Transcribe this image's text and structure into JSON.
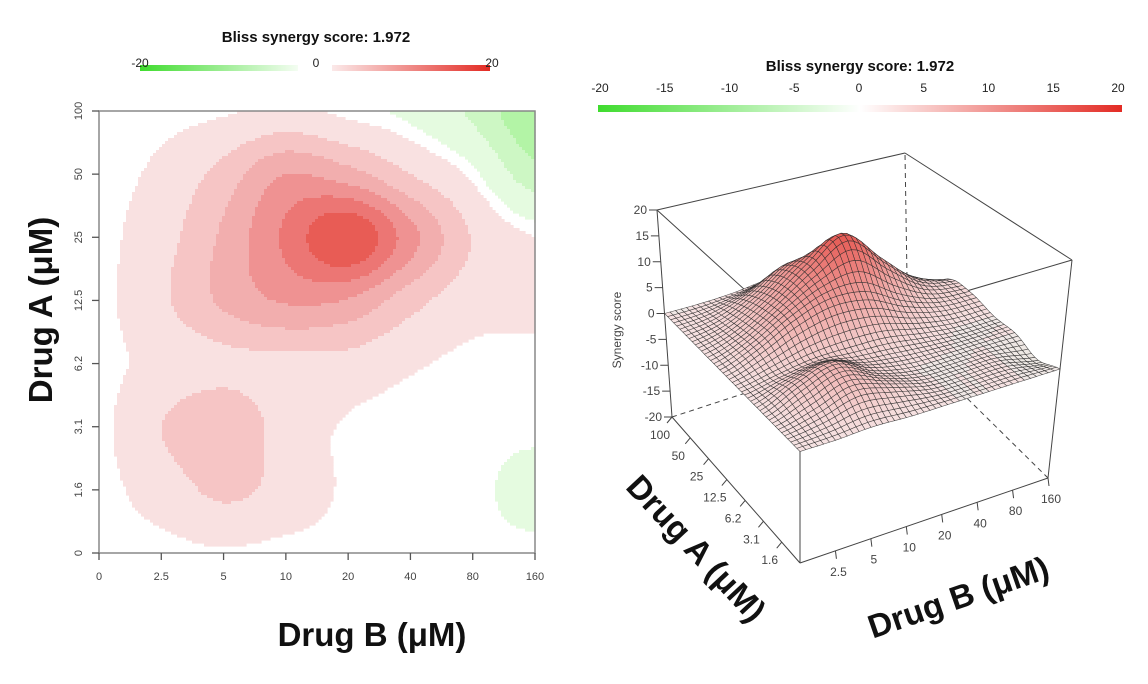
{
  "chart_data": [
    {
      "type": "heatmap",
      "subtype": "filled-contour",
      "title": "Bliss synergy score: 1.972",
      "xlabel": "Drug B (μM)",
      "ylabel": "Drug A (μM)",
      "x_ticks": [
        "0",
        "2.5",
        "5",
        "10",
        "20",
        "40",
        "80",
        "160"
      ],
      "y_ticks": [
        "0",
        "1.6",
        "3.1",
        "6.2",
        "12.5",
        "25",
        "50",
        "100"
      ],
      "colorbar": {
        "min": -20,
        "max": 20,
        "tick_labels": [
          "-20",
          "0",
          "20"
        ]
      },
      "values_rows_drugA_cols_drugB": [
        [
          0,
          0,
          0.3,
          0,
          0,
          0,
          0,
          0
        ],
        [
          0,
          1.5,
          3.6,
          2,
          0.2,
          0,
          0,
          -1.5
        ],
        [
          0,
          3,
          5,
          1.8,
          0.3,
          0,
          0,
          0
        ],
        [
          0,
          1.2,
          2.2,
          2.2,
          2,
          0.8,
          0,
          0
        ],
        [
          0,
          2.5,
          6,
          8.3,
          7.8,
          4,
          1.5,
          1
        ],
        [
          0,
          2,
          6,
          11,
          15.5,
          9,
          2.8,
          0.5
        ],
        [
          0,
          1,
          4,
          8,
          6.5,
          3,
          0,
          -4.5
        ],
        [
          0,
          0,
          0.3,
          1,
          0,
          -1,
          -3.5,
          -8
        ]
      ]
    },
    {
      "type": "surface",
      "title": "Bliss synergy score: 1.972",
      "xlabel": "Drug B (μM)",
      "ylabel": "Drug A (μM)",
      "zlabel": "Synergy score",
      "zlim": [
        -20,
        20
      ],
      "z_ticks": [
        "20",
        "15",
        "10",
        "5",
        "0",
        "-5",
        "-10",
        "-15",
        "-20"
      ],
      "x_ticks": [
        "2.5",
        "5",
        "10",
        "20",
        "40",
        "80",
        "160"
      ],
      "y_ticks": [
        "100",
        "50",
        "25",
        "12.5",
        "6.2",
        "3.1",
        "1.6"
      ],
      "colorbar": {
        "min": -20,
        "max": 20,
        "tick_labels": [
          "-20",
          "-15",
          "-10",
          "-5",
          "0",
          "5",
          "10",
          "15",
          "20"
        ]
      },
      "values_rows_drugA_cols_drugB": [
        [
          0,
          0,
          0.3,
          0,
          0,
          0,
          0,
          0
        ],
        [
          0,
          1.5,
          3.6,
          2,
          0.2,
          0,
          0,
          -1.5
        ],
        [
          0,
          3,
          5,
          1.8,
          0.3,
          0,
          0,
          0
        ],
        [
          0,
          1.2,
          2.2,
          2.2,
          2,
          0.8,
          0,
          0
        ],
        [
          0,
          2.5,
          6,
          8.3,
          7.8,
          4,
          1.5,
          1
        ],
        [
          0,
          2,
          6,
          11,
          15.5,
          9,
          2.8,
          0.5
        ],
        [
          0,
          1,
          4,
          8,
          6.5,
          3,
          0,
          -4.5
        ],
        [
          0,
          0,
          0.3,
          1,
          0,
          -1,
          -3.5,
          -8
        ]
      ]
    }
  ],
  "colors": {
    "antagonism": "#3fdc2e",
    "neutral": "#ffffff",
    "synergy": "#e32b24",
    "contour_synergy_levels": [
      "#f9e1e1",
      "#f6c5c5",
      "#f2aeae",
      "#ef9292",
      "#ec7674",
      "#e85c55"
    ],
    "contour_antagonism_levels": [
      "#e5fbe0",
      "#cdf7c4",
      "#b3f4a6"
    ]
  }
}
